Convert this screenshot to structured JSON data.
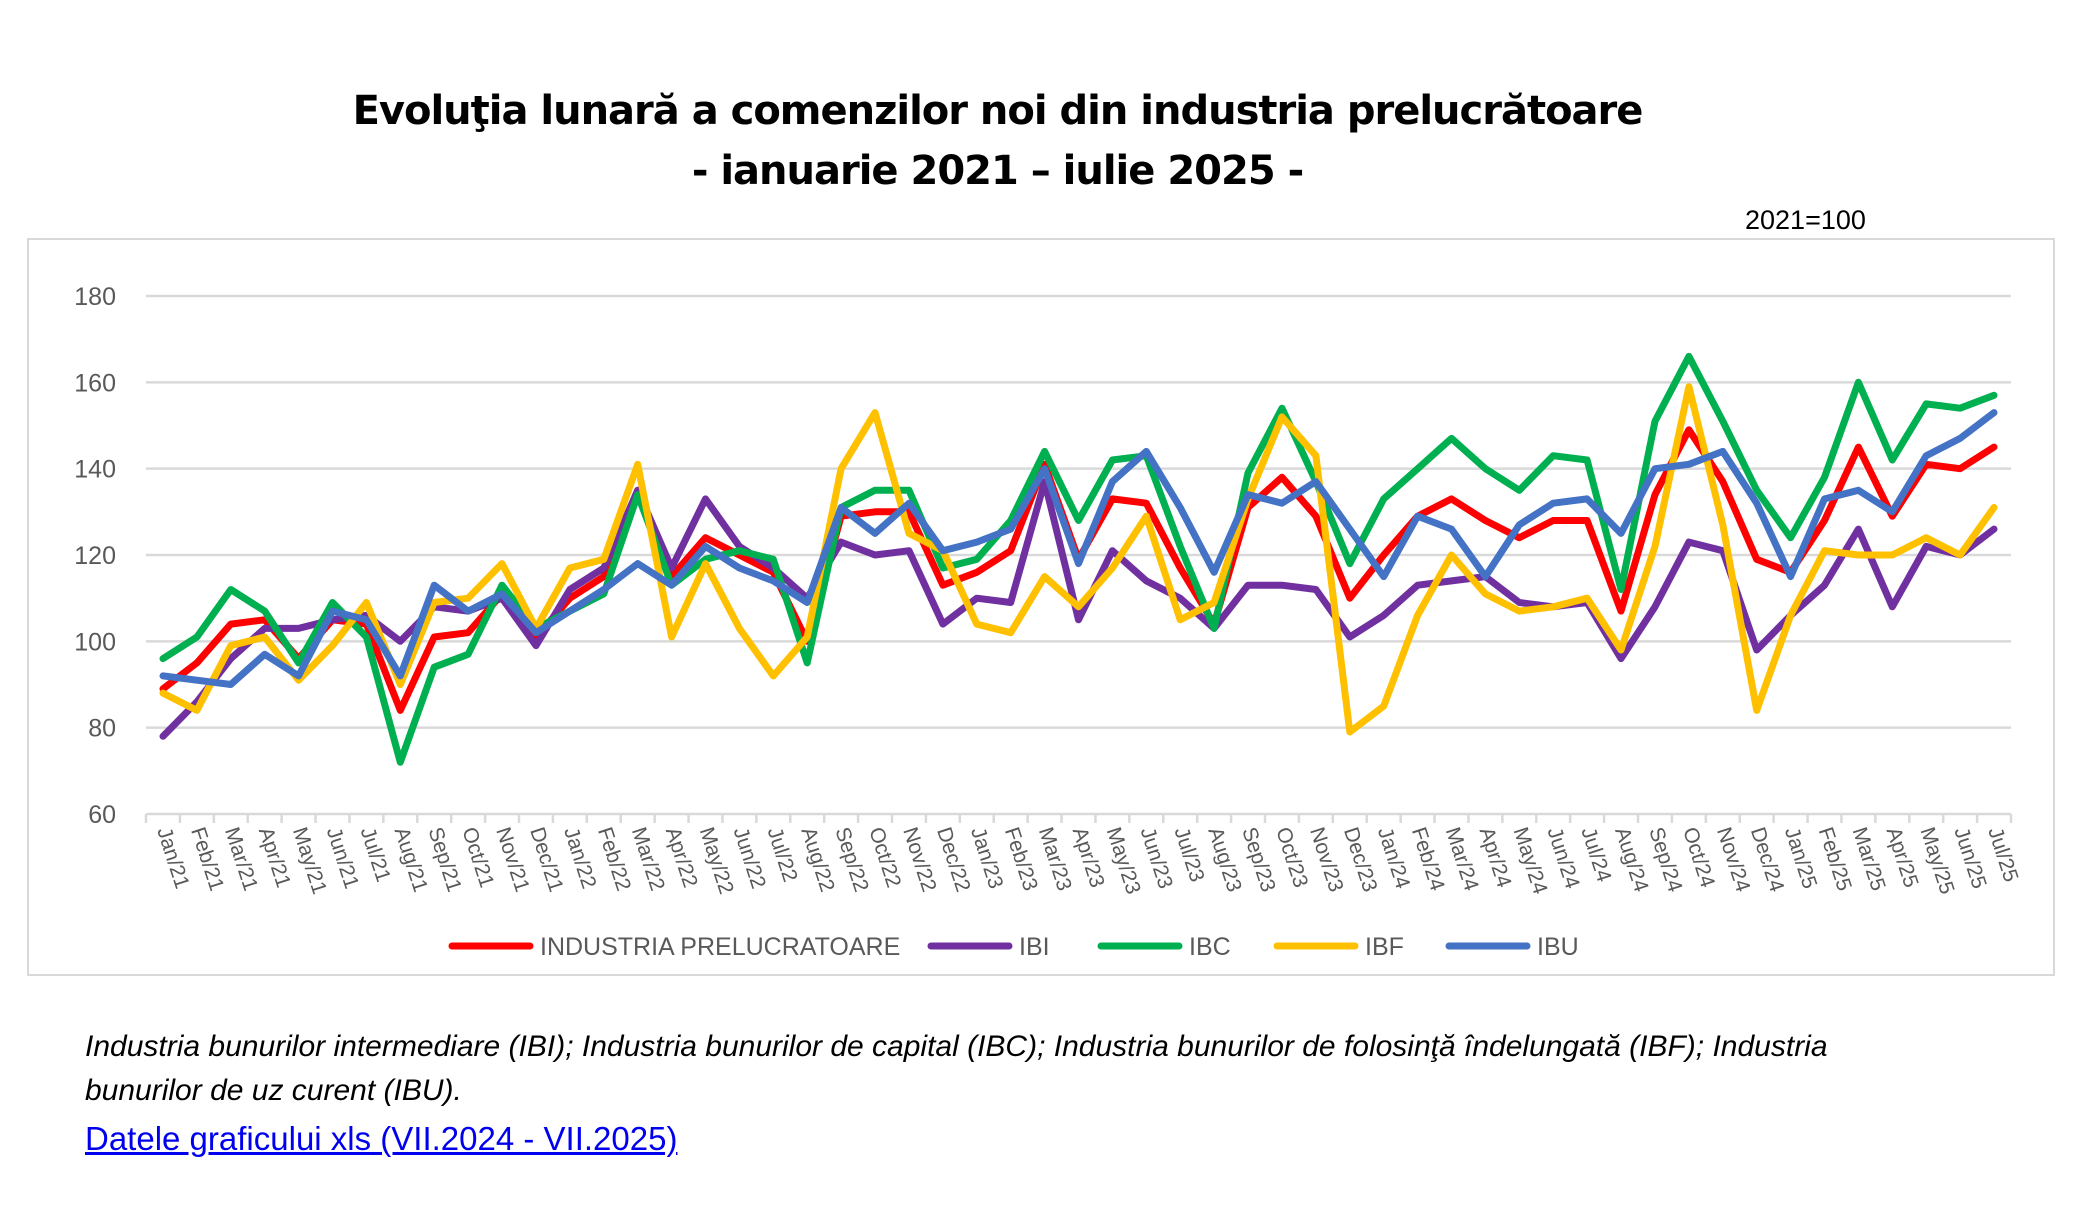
{
  "title_line1": "Evoluţia lunară a comenzilor noi din industria prelucrătoare",
  "title_line2": "-  ianuarie 2021 – iulie 2025  -",
  "base_note": "2021=100",
  "footnote_line1": "Industria bunurilor intermediare (IBI); Industria bunurilor de capital (IBC); Industria bunurilor de folosinţă îndelungată (IBF); Industria",
  "footnote_line2": "bunurilor de uz curent (IBU).",
  "link_text": "Datele graficului xls (VII.2024 - VII.2025)",
  "chart_data": {
    "type": "line",
    "title": "Evoluţia lunară a comenzilor noi din industria prelucrătoare",
    "xlabel": "",
    "ylabel": "",
    "ylim": [
      60,
      180
    ],
    "yticks": [
      60,
      80,
      100,
      120,
      140,
      160,
      180
    ],
    "grid": true,
    "legend_position": "bottom",
    "categories": [
      "Jan/21",
      "Feb/21",
      "Mar/21",
      "Apr/21",
      "May/21",
      "Jun/21",
      "Jul/21",
      "Aug/21",
      "Sep/21",
      "Oct/21",
      "Nov/21",
      "Dec/21",
      "Jan/22",
      "Feb/22",
      "Mar/22",
      "Apr/22",
      "May/22",
      "Jun/22",
      "Jul/22",
      "Aug/22",
      "Sep/22",
      "Oct/22",
      "Nov/22",
      "Dec/22",
      "Jan/23",
      "Feb/23",
      "Mar/23",
      "Apr/23",
      "May/23",
      "Jun/23",
      "Jul/23",
      "Aug/23",
      "Sep/23",
      "Oct/23",
      "Nov/23",
      "Dec/23",
      "Jan/24",
      "Feb/24",
      "Mar/24",
      "Apr/24",
      "May/24",
      "Jun/24",
      "Jul/24",
      "Aug/24",
      "Sep/24",
      "Oct/24",
      "Nov/24",
      "Dec/24",
      "Jan/25",
      "Feb/25",
      "Mar/25",
      "Apr/25",
      "May/25",
      "Jun/25",
      "Jul/25"
    ],
    "series": [
      {
        "name": "INDUSTRIA PRELUCRATOARE",
        "color": "#ff0000",
        "values": [
          89,
          95,
          104,
          105,
          96,
          105,
          104,
          84,
          101,
          102,
          111,
          101,
          110,
          115,
          135,
          115,
          124,
          120,
          116,
          100,
          129,
          130,
          130,
          113,
          116,
          121,
          141,
          119,
          133,
          132,
          117,
          104,
          131,
          138,
          129,
          110,
          120,
          129,
          133,
          128,
          124,
          128,
          128,
          107,
          134,
          149,
          137,
          119,
          116,
          128,
          145,
          129,
          141,
          140,
          145
        ]
      },
      {
        "name": "IBI",
        "color": "#7030a0",
        "values": [
          78,
          86,
          96,
          103,
          103,
          105,
          106,
          100,
          108,
          107,
          110,
          99,
          112,
          117,
          135,
          117,
          133,
          122,
          117,
          110,
          123,
          120,
          121,
          104,
          110,
          109,
          137,
          105,
          121,
          114,
          110,
          103,
          113,
          113,
          112,
          101,
          106,
          113,
          114,
          115,
          109,
          108,
          109,
          96,
          108,
          123,
          121,
          98,
          106,
          113,
          126,
          108,
          122,
          120,
          126
        ]
      },
      {
        "name": "IBC",
        "color": "#00b050",
        "values": [
          96,
          101,
          112,
          107,
          95,
          109,
          101,
          72,
          94,
          97,
          113,
          103,
          107,
          111,
          134,
          113,
          119,
          121,
          119,
          95,
          131,
          135,
          135,
          117,
          119,
          128,
          144,
          128,
          142,
          143,
          122,
          103,
          139,
          154,
          137,
          118,
          133,
          140,
          147,
          140,
          135,
          143,
          142,
          112,
          151,
          166,
          151,
          135,
          124,
          138,
          160,
          142,
          155,
          154,
          157
        ]
      },
      {
        "name": "IBF",
        "color": "#ffc000",
        "values": [
          88,
          84,
          99,
          101,
          91,
          99,
          109,
          90,
          109,
          110,
          118,
          103,
          117,
          119,
          141,
          101,
          118,
          103,
          92,
          101,
          140,
          153,
          125,
          121,
          104,
          102,
          115,
          108,
          117,
          129,
          105,
          109,
          133,
          152,
          143,
          79,
          85,
          106,
          120,
          111,
          107,
          108,
          110,
          98,
          122,
          159,
          127,
          84,
          106,
          121,
          120,
          120,
          124,
          120,
          131
        ]
      },
      {
        "name": "IBU",
        "color": "#4472c4",
        "values": [
          92,
          91,
          90,
          97,
          92,
          107,
          105,
          92,
          113,
          107,
          111,
          102,
          107,
          112,
          118,
          113,
          122,
          117,
          114,
          109,
          131,
          125,
          132,
          121,
          123,
          126,
          140,
          118,
          137,
          144,
          131,
          116,
          134,
          132,
          137,
          126,
          115,
          129,
          126,
          115,
          127,
          132,
          133,
          125,
          140,
          141,
          144,
          132,
          115,
          133,
          135,
          130,
          143,
          147,
          153
        ]
      }
    ]
  }
}
